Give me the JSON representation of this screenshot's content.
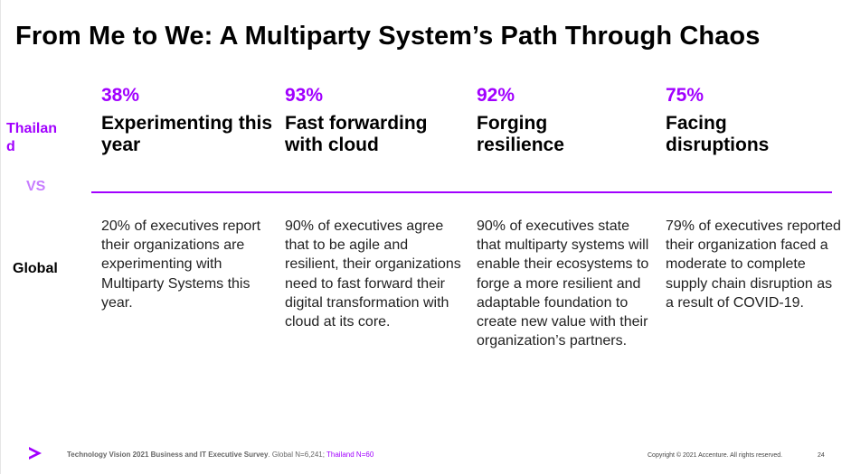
{
  "slide": {
    "title": "From Me to We: A Multiparty System’s Path Through Chaos",
    "row_labels": {
      "thailand": "Thailand",
      "vs": "VS",
      "global": "Global"
    },
    "columns": [
      {
        "percent": "38%",
        "heading": "Experimenting this year",
        "body": "20% of executives report their organizations are experimenting with Multiparty Systems this year."
      },
      {
        "percent": "93%",
        "heading": "Fast forwarding with cloud",
        "body": "90% of executives agree that to be agile and resilient, their organizations need to fast forward their digital transformation with cloud at its core."
      },
      {
        "percent": "92%",
        "heading": "Forging resilience",
        "body": "90% of executives state that multiparty systems will enable their ecosystems to forge a more resilient and adaptable foundation to create new value with their organization’s partners."
      },
      {
        "percent": "75%",
        "heading": "Facing disruptions",
        "body": "79% of executives reported their organization faced a moderate to complete supply chain disruption as a result of COVID-19."
      }
    ],
    "colors": {
      "accent": "#a100ff",
      "vs": "#c77dff"
    }
  },
  "footer": {
    "logo_icon": "accenture-chevron-icon",
    "source_bold": "Technology Vision 2021 Business and IT Executive Survey",
    "source_global": ". Global N=6,241;",
    "source_thailand": "Thailand N=60",
    "copyright": "Copyright © 2021 Accenture. All rights reserved.",
    "page_number": "24"
  }
}
